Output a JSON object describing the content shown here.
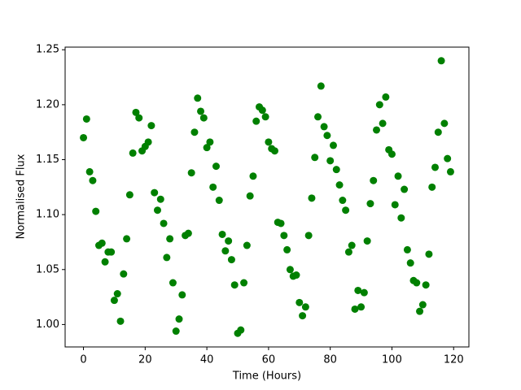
{
  "chart_data": {
    "type": "scatter",
    "xlabel": "Time (Hours)",
    "ylabel": "Normalised Flux",
    "color": "#008000",
    "x": [
      0,
      1,
      2,
      3,
      4,
      5,
      6,
      7,
      8,
      9,
      10,
      11,
      12,
      13,
      14,
      15,
      16,
      17,
      18,
      19,
      20,
      21,
      22,
      23,
      24,
      25,
      26,
      27,
      28,
      29,
      30,
      31,
      32,
      33,
      34,
      35,
      36,
      37,
      38,
      39,
      40,
      41,
      42,
      43,
      44,
      45,
      46,
      47,
      48,
      49,
      50,
      51,
      52,
      53,
      54,
      55,
      56,
      57,
      58,
      59,
      60,
      61,
      62,
      63,
      64,
      65,
      66,
      67,
      68,
      69,
      70,
      71,
      72,
      73,
      74,
      75,
      76,
      77,
      78,
      79,
      80,
      81,
      82,
      83,
      84,
      85,
      86,
      87,
      88,
      89,
      90,
      91,
      92,
      93,
      94,
      95,
      96,
      97,
      98,
      99,
      100,
      101,
      102,
      103,
      104,
      105,
      106,
      107,
      108,
      109,
      110,
      111,
      112,
      113,
      114,
      115,
      116,
      117,
      118,
      119
    ],
    "values": [
      1.17,
      1.187,
      1.139,
      1.131,
      1.103,
      1.072,
      1.074,
      1.057,
      1.066,
      1.066,
      1.022,
      1.028,
      1.003,
      1.046,
      1.078,
      1.118,
      1.156,
      1.193,
      1.188,
      1.158,
      1.162,
      1.166,
      1.181,
      1.12,
      1.104,
      1.114,
      1.092,
      1.061,
      1.078,
      1.038,
      0.994,
      1.005,
      1.027,
      1.081,
      1.083,
      1.138,
      1.175,
      1.206,
      1.194,
      1.188,
      1.161,
      1.166,
      1.125,
      1.144,
      1.113,
      1.082,
      1.067,
      1.076,
      1.059,
      1.036,
      0.992,
      0.995,
      1.038,
      1.072,
      1.117,
      1.135,
      1.185,
      1.198,
      1.195,
      1.189,
      1.166,
      1.16,
      1.158,
      1.093,
      1.092,
      1.081,
      1.068,
      1.05,
      1.044,
      1.045,
      1.02,
      1.008,
      1.016,
      1.081,
      1.115,
      1.152,
      1.189,
      1.217,
      1.18,
      1.172,
      1.149,
      1.163,
      1.141,
      1.127,
      1.113,
      1.104,
      1.066,
      1.072,
      1.014,
      1.031,
      1.016,
      1.029,
      1.076,
      1.11,
      1.131,
      1.177,
      1.2,
      1.183,
      1.207,
      1.159,
      1.155,
      1.109,
      1.135,
      1.097,
      1.123,
      1.068,
      1.056,
      1.04,
      1.038,
      1.012,
      1.018,
      1.036,
      1.064,
      1.125,
      1.143,
      1.175,
      1.24,
      1.183,
      1.151,
      1.139
    ],
    "xlim": [
      -5.95,
      124.95
    ],
    "ylim": [
      0.9796,
      1.2524
    ],
    "xticks": [
      0,
      20,
      40,
      60,
      80,
      100,
      120
    ],
    "yticks": [
      {
        "value": 1.0,
        "label": "1.00"
      },
      1.05,
      {
        "value": 1.1,
        "label": "1.10"
      },
      1.15,
      {
        "value": 1.2,
        "label": "1.20"
      },
      1.25
    ]
  }
}
